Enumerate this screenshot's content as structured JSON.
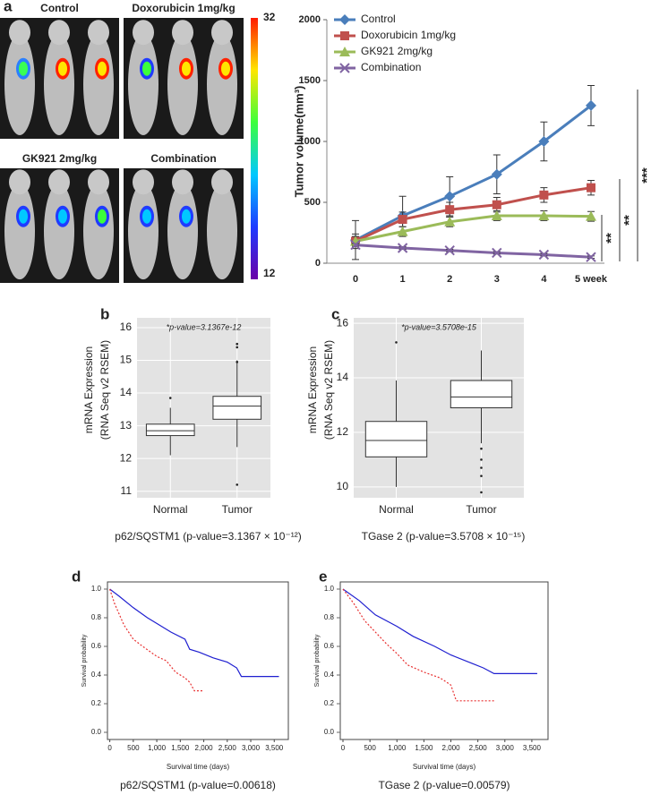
{
  "panel_labels": [
    "a",
    "b",
    "c",
    "d",
    "e"
  ],
  "imaging": {
    "groups": [
      "Control",
      "Doxorubicin 1mg/kg",
      "GK921 2mg/kg",
      "Combination"
    ],
    "colorbar_ticks": [
      12,
      32
    ]
  },
  "chart_data": [
    {
      "type": "line",
      "ylabel": "Tumor volume(mm³)",
      "categories": [
        "0",
        "1",
        "2",
        "3",
        "4",
        "5 week"
      ],
      "ylim": [
        0,
        2000
      ],
      "yticks": [
        0,
        500,
        1000,
        1500,
        2000
      ],
      "legend": "upper left",
      "series": [
        {
          "name": "Control",
          "color": "#4a7ebb",
          "marker": "diamond",
          "values": [
            190,
            390,
            550,
            730,
            1000,
            1295
          ],
          "errors": [
            160,
            160,
            160,
            160,
            160,
            165
          ]
        },
        {
          "name": "Doxorubicin 1mg/kg",
          "color": "#c0504d",
          "marker": "square",
          "values": [
            180,
            360,
            440,
            480,
            560,
            620
          ],
          "errors": [
            60,
            60,
            60,
            60,
            60,
            60
          ]
        },
        {
          "name": "GK921 2mg/kg",
          "color": "#9bbb59",
          "marker": "triangle",
          "values": [
            180,
            260,
            340,
            390,
            390,
            385
          ],
          "errors": [
            40,
            40,
            40,
            40,
            40,
            40
          ]
        },
        {
          "name": "Combination",
          "color": "#8064a2",
          "marker": "x",
          "values": [
            150,
            125,
            105,
            85,
            70,
            50
          ],
          "errors": [
            10,
            10,
            10,
            10,
            10,
            10
          ]
        }
      ],
      "annotations": [
        "**",
        "**",
        "***"
      ]
    },
    {
      "type": "box",
      "title": "*p-value=3.1367e-12",
      "ylabel": [
        "mRNA Expression",
        "(RNA Seq v2 RSEM)"
      ],
      "caption": "p62/SQSTM1 (p-value=3.1367 × 10⁻¹²)",
      "categories": [
        "Normal",
        "Tumor"
      ],
      "ylim": [
        10.8,
        16.3
      ],
      "yticks": [
        11,
        12,
        13,
        14,
        15,
        16
      ],
      "stats": [
        {
          "min": 12.1,
          "q1": 12.7,
          "median": 12.85,
          "q3": 13.05,
          "max": 13.55,
          "outliers": [
            13.85
          ]
        },
        {
          "min": 12.35,
          "q1": 13.2,
          "median": 13.6,
          "q3": 13.9,
          "max": 15.0,
          "outliers": [
            15.5,
            15.4,
            14.95,
            11.2
          ]
        }
      ]
    },
    {
      "type": "box",
      "title": "*p-value=3.5708e-15",
      "ylabel": [
        "mRNA Expression",
        "(RNA Seq v2 RSEM)"
      ],
      "caption": "TGase 2 (p-value=3.5708 × 10⁻¹⁵)",
      "categories": [
        "Normal",
        "Tumor"
      ],
      "ylim": [
        9.6,
        16.2
      ],
      "yticks": [
        10,
        12,
        14,
        16
      ],
      "stats": [
        {
          "min": 10.0,
          "q1": 11.1,
          "median": 11.7,
          "q3": 12.4,
          "max": 13.9,
          "outliers": [
            15.3
          ]
        },
        {
          "min": 11.6,
          "q1": 12.9,
          "median": 13.3,
          "q3": 13.9,
          "max": 15.0,
          "outliers": [
            11.4,
            11.0,
            10.7,
            10.4,
            9.8
          ]
        }
      ]
    },
    {
      "type": "line",
      "xlabel": "Survival time (days)",
      "ylabel": "Survival probability",
      "caption": "p62/SQSTM1 (p-value=0.00618)",
      "xlim": [
        -50,
        3800
      ],
      "ylim": [
        -0.05,
        1.05
      ],
      "xticks": [
        0,
        500,
        {
          "value": 1000,
          "label": "1,000"
        },
        {
          "value": 1500,
          "label": "1,500"
        },
        {
          "value": 2000,
          "label": "2,000"
        },
        {
          "value": 2500,
          "label": "2,500"
        },
        {
          "value": 3000,
          "label": "3,000"
        },
        {
          "value": 3500,
          "label": "3,500"
        }
      ],
      "yticks": [
        {
          "value": 0,
          "label": "0.0"
        },
        {
          "value": 0.2,
          "label": "0.2"
        },
        {
          "value": 0.4,
          "label": "0.4"
        },
        {
          "value": 0.6,
          "label": "0.6"
        },
        {
          "value": 0.8,
          "label": "0.8"
        },
        {
          "value": 1,
          "label": "1.0"
        }
      ],
      "series": [
        {
          "color": "#1f1fd0",
          "x": [
            0,
            200,
            500,
            800,
            1000,
            1300,
            1600,
            1700,
            1900,
            2200,
            2500,
            2700,
            2800,
            3600
          ],
          "values": [
            1.0,
            0.95,
            0.87,
            0.8,
            0.76,
            0.7,
            0.65,
            0.58,
            0.56,
            0.52,
            0.49,
            0.45,
            0.39,
            0.39
          ]
        },
        {
          "color": "#e83030",
          "dashed": true,
          "x": [
            0,
            100,
            300,
            500,
            700,
            1000,
            1200,
            1400,
            1600,
            1700,
            1800,
            2000
          ],
          "values": [
            1.0,
            0.9,
            0.75,
            0.65,
            0.6,
            0.53,
            0.5,
            0.42,
            0.38,
            0.35,
            0.29,
            0.29
          ]
        }
      ]
    },
    {
      "type": "line",
      "xlabel": "Survival time (days)",
      "ylabel": "Survival probability",
      "caption": "TGase 2 (p-value=0.00579)",
      "xlim": [
        -50,
        3800
      ],
      "ylim": [
        -0.05,
        1.05
      ],
      "xticks": [
        0,
        500,
        {
          "value": 1000,
          "label": "1,000"
        },
        {
          "value": 1500,
          "label": "1,500"
        },
        {
          "value": 2000,
          "label": "2,000"
        },
        {
          "value": 2500,
          "label": "2,500"
        },
        {
          "value": 3000,
          "label": "3,000"
        },
        {
          "value": 3500,
          "label": "3,500"
        }
      ],
      "yticks": [
        {
          "value": 0,
          "label": "0.0"
        },
        {
          "value": 0.2,
          "label": "0.2"
        },
        {
          "value": 0.4,
          "label": "0.4"
        },
        {
          "value": 0.6,
          "label": "0.6"
        },
        {
          "value": 0.8,
          "label": "0.8"
        },
        {
          "value": 1,
          "label": "1.0"
        }
      ],
      "series": [
        {
          "color": "#1f1fd0",
          "x": [
            0,
            300,
            600,
            1000,
            1300,
            1700,
            2000,
            2400,
            2600,
            2800,
            3600
          ],
          "values": [
            1.0,
            0.92,
            0.82,
            0.74,
            0.67,
            0.6,
            0.54,
            0.48,
            0.45,
            0.41,
            0.41
          ]
        },
        {
          "color": "#e83030",
          "dashed": true,
          "x": [
            0,
            200,
            400,
            600,
            800,
            1000,
            1200,
            1500,
            1800,
            2000,
            2100,
            2500,
            2800
          ],
          "values": [
            1.0,
            0.9,
            0.78,
            0.7,
            0.62,
            0.55,
            0.47,
            0.42,
            0.38,
            0.33,
            0.22,
            0.22,
            0.22
          ]
        }
      ]
    }
  ]
}
